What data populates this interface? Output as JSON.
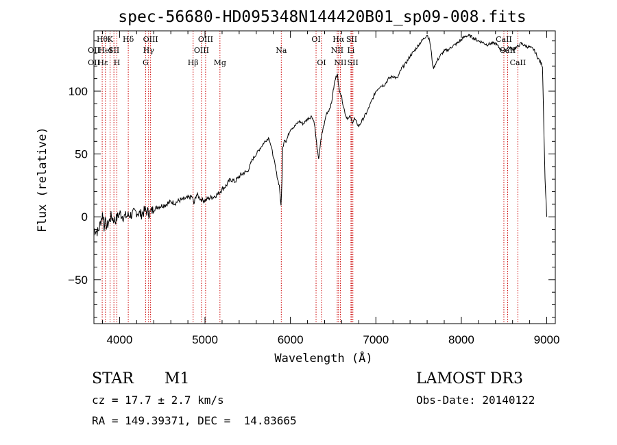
{
  "chart_data": {
    "type": "line",
    "title": "spec-56680-HD095348N144420B01_sp09-008.fits",
    "xlabel": "Wavelength (Å)",
    "ylabel": "Flux (relative)",
    "xlim": [
      3700,
      9100
    ],
    "ylim": [
      -85,
      148
    ],
    "xticks": [
      4000,
      5000,
      6000,
      7000,
      8000,
      9000
    ],
    "xtick_labels": [
      "4000",
      "5000",
      "6000",
      "7000",
      "8000",
      "9000"
    ],
    "yticks": [
      -50,
      0,
      50,
      100
    ],
    "ytick_labels": [
      "−50",
      "0",
      "50",
      "100"
    ],
    "line_color": "#000000",
    "marker_color": "#cc0000",
    "series": [
      {
        "x": [
          3700,
          3750,
          3800,
          3850,
          3900,
          3950,
          4000,
          4050,
          4100,
          4150,
          4200,
          4250,
          4300,
          4350,
          4400,
          4450,
          4500,
          4550,
          4600,
          4650,
          4700,
          4750,
          4800,
          4850,
          4870,
          4900,
          4950,
          5000,
          5050,
          5100,
          5150,
          5200,
          5250,
          5300,
          5350,
          5400,
          5450,
          5500,
          5550,
          5600,
          5650,
          5700,
          5750,
          5800,
          5850,
          5870,
          5890,
          5900,
          5910,
          5930,
          5950,
          6000,
          6050,
          6100,
          6150,
          6200,
          6250,
          6280,
          6300,
          6330,
          6350,
          6380,
          6400,
          6420,
          6450,
          6480,
          6500,
          6520,
          6550,
          6560,
          6580,
          6600,
          6620,
          6650,
          6680,
          6700,
          6720,
          6750,
          6800,
          6850,
          6900,
          6950,
          7000,
          7050,
          7100,
          7150,
          7200,
          7250,
          7300,
          7350,
          7400,
          7450,
          7500,
          7550,
          7600,
          7630,
          7650,
          7670,
          7700,
          7750,
          7800,
          7850,
          7900,
          7950,
          8000,
          8050,
          8100,
          8150,
          8200,
          8250,
          8300,
          8350,
          8400,
          8450,
          8500,
          8550,
          8600,
          8650,
          8700,
          8750,
          8800,
          8850,
          8900,
          8950,
          8980,
          9000
        ],
        "y": [
          -10,
          -12,
          2,
          -8,
          0,
          -3,
          3,
          0,
          1,
          2,
          4,
          2,
          5,
          3,
          6,
          8,
          9,
          10,
          12,
          11,
          13,
          14,
          15,
          16,
          10,
          18,
          14,
          13,
          15,
          16,
          18,
          22,
          25,
          30,
          28,
          32,
          35,
          36,
          45,
          50,
          55,
          60,
          63,
          48,
          30,
          25,
          8,
          28,
          55,
          62,
          60,
          70,
          72,
          76,
          74,
          78,
          80,
          75,
          62,
          45,
          58,
          70,
          75,
          82,
          85,
          90,
          100,
          108,
          115,
          105,
          100,
          95,
          88,
          80,
          78,
          80,
          75,
          78,
          72,
          78,
          84,
          92,
          100,
          104,
          105,
          110,
          112,
          110,
          118,
          122,
          128,
          132,
          137,
          141,
          145,
          140,
          130,
          118,
          122,
          128,
          132,
          133,
          136,
          138,
          141,
          144,
          144,
          142,
          140,
          139,
          137,
          138,
          138,
          134,
          132,
          135,
          133,
          135,
          138,
          136,
          135,
          133,
          126,
          120,
          30,
          0
        ]
      }
    ],
    "line_markers": [
      {
        "x": 3797,
        "label": "Hθ",
        "row": 0
      },
      {
        "x": 3835,
        "label": "HeI",
        "row": 1
      },
      {
        "x": 3889,
        "label": "K",
        "row": 0
      },
      {
        "x": 3934,
        "label": "SII",
        "row": 1
      },
      {
        "x": 3969,
        "label": "H",
        "row": 2
      },
      {
        "x": 4102,
        "label": "Hδ",
        "row": 0
      },
      {
        "x": 4305,
        "label": "G",
        "row": 2
      },
      {
        "x": 4340,
        "label": "Hγ",
        "row": 1
      },
      {
        "x": 4363,
        "label": "OIII",
        "row": 0
      },
      {
        "x": 4861,
        "label": "Hβ",
        "row": 2
      },
      {
        "x": 4959,
        "label": "OIII",
        "row": 1
      },
      {
        "x": 5007,
        "label": "OIII",
        "row": 0
      },
      {
        "x": 5175,
        "label": "Mg",
        "row": 2
      },
      {
        "x": 5893,
        "label": "Na",
        "row": 1
      },
      {
        "x": 6300,
        "label": "OI",
        "row": 0
      },
      {
        "x": 6364,
        "label": "OI",
        "row": 2
      },
      {
        "x": 6548,
        "label": "NII",
        "row": 1
      },
      {
        "x": 6563,
        "label": "Hα",
        "row": 0
      },
      {
        "x": 6584,
        "label": "NII",
        "row": 2
      },
      {
        "x": 6708,
        "label": "Li",
        "row": 1
      },
      {
        "x": 6717,
        "label": "SII",
        "row": 0
      },
      {
        "x": 6731,
        "label": "SII",
        "row": 2
      },
      {
        "x": 8498,
        "label": "CaII",
        "row": 0
      },
      {
        "x": 8542,
        "label": "CaII",
        "row": 1
      },
      {
        "x": 8662,
        "label": "CaII",
        "row": 2
      }
    ],
    "left_edge_labels": [
      {
        "label": "OII",
        "row": 1
      },
      {
        "label": "OII",
        "row": 2
      },
      {
        "label": "Hε",
        "row": 2
      }
    ],
    "grid": false,
    "legend": "none"
  },
  "footer": {
    "class_label": "STAR",
    "subclass_label": "M1",
    "survey": "LAMOST DR3",
    "redshift": "cz = 17.7 ± 2.7 km/s",
    "obs_date": "Obs-Date: 20140122",
    "coords": "RA = 149.39371, DEC =  14.83665"
  }
}
